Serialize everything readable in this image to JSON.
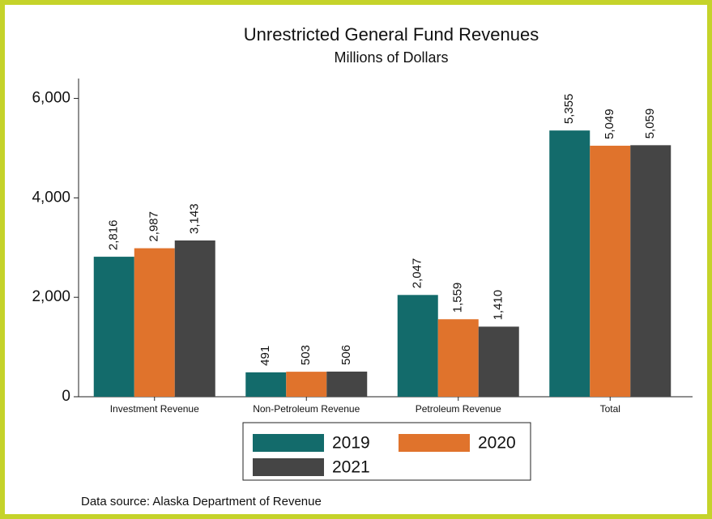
{
  "chart_data": {
    "type": "bar",
    "title": "Unrestricted General Fund Revenues",
    "subtitle": "Millions of Dollars",
    "categories": [
      "Investment Revenue",
      "Non-Petroleum Revenue",
      "Petroleum Revenue",
      "Total"
    ],
    "series": [
      {
        "name": "2019",
        "color": "#136b6b",
        "values": [
          2816,
          491,
          2047,
          5355
        ],
        "value_labels": [
          "2,816",
          "491",
          "2,047",
          "5,355"
        ]
      },
      {
        "name": "2020",
        "color": "#e0732c",
        "values": [
          2987,
          503,
          1559,
          5049
        ],
        "value_labels": [
          "2,987",
          "503",
          "1,559",
          "5,049"
        ]
      },
      {
        "name": "2021",
        "color": "#454545",
        "values": [
          3143,
          506,
          1410,
          5059
        ],
        "value_labels": [
          "3,143",
          "506",
          "1,410",
          "5,059"
        ]
      }
    ],
    "ylim": [
      0,
      6400
    ],
    "yticks": [
      0,
      {
        "value": 2000,
        "label": "2,000"
      },
      {
        "value": 4000,
        "label": "4,000"
      },
      {
        "value": 6000,
        "label": "6,000"
      }
    ],
    "grid": false,
    "legend": "bottom",
    "note": "Data source: Alaska Department of Revenue"
  }
}
